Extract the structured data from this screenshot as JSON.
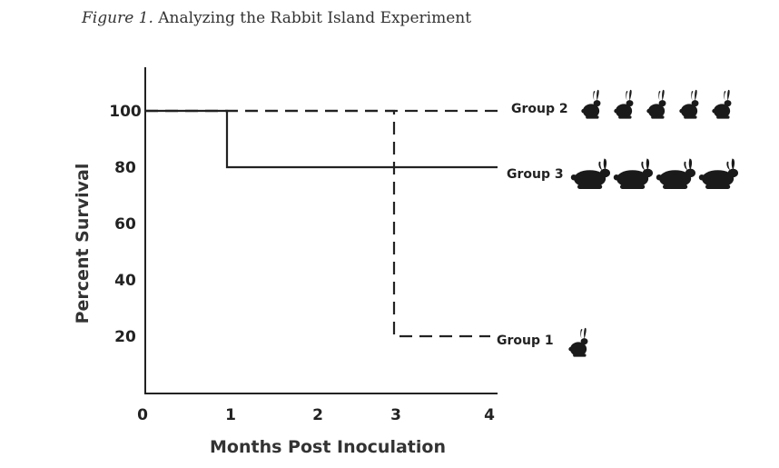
{
  "caption": {
    "figure_label": "Figure 1.",
    "title": "Analyzing the Rabbit Island Experiment"
  },
  "icons": {
    "rabbit": "rabbit-icon"
  },
  "chart_data": {
    "type": "line",
    "step": true,
    "xlabel": "Months Post Inoculation",
    "ylabel": "Percent Survival",
    "xlim": [
      0,
      4
    ],
    "ylim": [
      0,
      115
    ],
    "xticks": [
      0,
      1,
      2,
      3,
      4
    ],
    "yticks": [
      20,
      40,
      60,
      80,
      100
    ],
    "grid": false,
    "series": [
      {
        "name": "Group 2",
        "style": "dashed",
        "color": "#222222",
        "points": [
          [
            0,
            100
          ],
          [
            4,
            100
          ]
        ],
        "rabbits": 5
      },
      {
        "name": "Group 3",
        "style": "solid",
        "color": "#222222",
        "points": [
          [
            0,
            100
          ],
          [
            1,
            100
          ],
          [
            1,
            80
          ],
          [
            4,
            80
          ]
        ],
        "rabbits": 4
      },
      {
        "name": "Group 1",
        "style": "dashed",
        "color": "#222222",
        "points": [
          [
            0,
            100
          ],
          [
            3,
            100
          ],
          [
            3,
            20
          ],
          [
            4,
            20
          ]
        ],
        "rabbits": 1
      }
    ]
  }
}
